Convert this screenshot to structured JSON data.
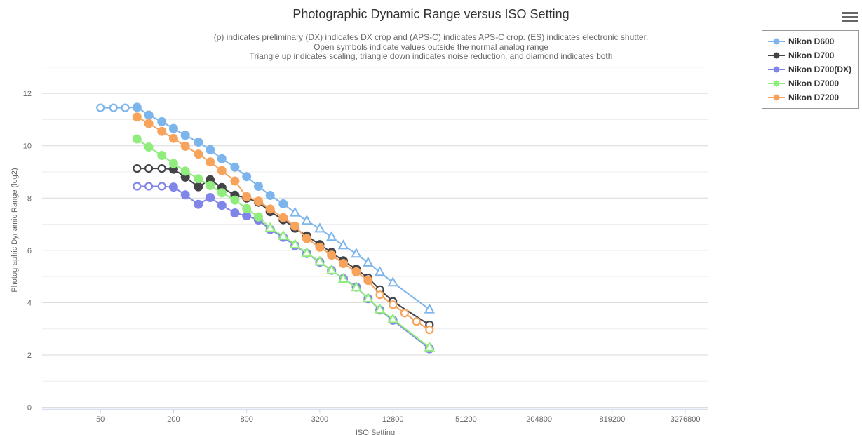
{
  "header": {
    "title": "Photographic Dynamic Range versus ISO Setting",
    "subtitle_lines": [
      "(p) indicates preliminary (DX) indicates DX crop and (APS-C) indicates APS-C crop. (ES) indicates electronic shutter.",
      "Open symbols indicate values outside the normal analog range",
      "Triangle up indicates scaling, triangle down indicates noise reduction, and diamond indicates both"
    ]
  },
  "toolbar": {
    "context_menu_icon": "hamburger-icon"
  },
  "chart_data": {
    "type": "line",
    "title": "Photographic Dynamic Range versus ISO Setting",
    "xlabel": "ISO Setting",
    "ylabel": "Photographic Dynamic Range (log2)",
    "grid": true,
    "legend_position": "top-right",
    "x_axis": {
      "scale": "log2",
      "range": [
        50,
        3276800
      ],
      "ticks": [
        {
          "iso": 50,
          "label": "50"
        },
        {
          "iso": 200,
          "label": "200"
        },
        {
          "iso": 800,
          "label": "800"
        },
        {
          "iso": 3200,
          "label": "3200"
        },
        {
          "iso": 12800,
          "label": "12800"
        },
        {
          "iso": 51200,
          "label": "51200"
        },
        {
          "iso": 204800,
          "label": "204800"
        },
        {
          "iso": 819200,
          "label": "819200"
        },
        {
          "iso": 3276800,
          "label": "3276800"
        }
      ]
    },
    "y_axis": {
      "range": [
        0,
        13
      ],
      "ticks": [
        {
          "v": 0,
          "label": "0"
        },
        {
          "v": 2,
          "label": "2"
        },
        {
          "v": 4,
          "label": "4"
        },
        {
          "v": 6,
          "label": "6"
        },
        {
          "v": 8,
          "label": "8"
        },
        {
          "v": 10,
          "label": "10"
        },
        {
          "v": 12,
          "label": "12"
        }
      ],
      "minor": [
        1,
        3,
        5,
        7,
        9,
        11,
        13
      ]
    },
    "colors": {
      "axis_line": "#ccd6eb",
      "major_grid": "#d8d8d8",
      "minor_grid": "#ededed",
      "tick_text": "#666666",
      "title_text": "#333333",
      "subtitle_text": "#666666"
    },
    "marker_key": {
      "c": "filled circle (normal analog range)",
      "o": "open circle (outside normal analog range)",
      "t": "open triangle-up (scaling applied)"
    },
    "series": [
      {
        "name": "Nikon D600",
        "color": "#7cb5ec",
        "points": [
          [
            50,
            11.45,
            "o"
          ],
          [
            64,
            11.45,
            "o"
          ],
          [
            80,
            11.45,
            "o"
          ],
          [
            100,
            11.47,
            "c"
          ],
          [
            125,
            11.17,
            "c"
          ],
          [
            160,
            10.92,
            "c"
          ],
          [
            200,
            10.66,
            "c"
          ],
          [
            250,
            10.4,
            "c"
          ],
          [
            320,
            10.14,
            "c"
          ],
          [
            400,
            9.85,
            "c"
          ],
          [
            500,
            9.5,
            "c"
          ],
          [
            640,
            9.18,
            "c"
          ],
          [
            800,
            8.82,
            "c"
          ],
          [
            1000,
            8.45,
            "c"
          ],
          [
            1250,
            8.1,
            "c"
          ],
          [
            1600,
            7.78,
            "c"
          ],
          [
            2000,
            7.44,
            "t"
          ],
          [
            2500,
            7.13,
            "t"
          ],
          [
            3200,
            6.83,
            "t"
          ],
          [
            4000,
            6.51,
            "t"
          ],
          [
            5000,
            6.19,
            "t"
          ],
          [
            6400,
            5.87,
            "t"
          ],
          [
            8000,
            5.53,
            "t"
          ],
          [
            10000,
            5.17,
            "t"
          ],
          [
            12800,
            4.77,
            "t"
          ],
          [
            25600,
            3.74,
            "t"
          ]
        ]
      },
      {
        "name": "Nikon D700",
        "color": "#434348",
        "points": [
          [
            100,
            9.13,
            "o"
          ],
          [
            125,
            9.13,
            "o"
          ],
          [
            160,
            9.13,
            "o"
          ],
          [
            200,
            9.1,
            "c"
          ],
          [
            250,
            8.8,
            "c"
          ],
          [
            320,
            8.43,
            "c"
          ],
          [
            400,
            8.7,
            "c"
          ],
          [
            500,
            8.4,
            "c"
          ],
          [
            640,
            8.11,
            "c"
          ],
          [
            800,
            8.0,
            "c"
          ],
          [
            1000,
            7.84,
            "c"
          ],
          [
            1250,
            7.48,
            "c"
          ],
          [
            1600,
            7.17,
            "c"
          ],
          [
            2000,
            6.85,
            "c"
          ],
          [
            2500,
            6.55,
            "c"
          ],
          [
            3200,
            6.22,
            "c"
          ],
          [
            4000,
            5.92,
            "c"
          ],
          [
            5000,
            5.6,
            "c"
          ],
          [
            6400,
            5.28,
            "c"
          ],
          [
            8000,
            4.95,
            "o"
          ],
          [
            10000,
            4.5,
            "o"
          ],
          [
            12800,
            4.05,
            "o"
          ],
          [
            25600,
            3.15,
            "o"
          ]
        ]
      },
      {
        "name": "Nikon D700(DX)",
        "color": "#8085e9",
        "points": [
          [
            100,
            8.45,
            "o"
          ],
          [
            125,
            8.45,
            "o"
          ],
          [
            160,
            8.45,
            "o"
          ],
          [
            200,
            8.42,
            "c"
          ],
          [
            250,
            8.12,
            "c"
          ],
          [
            320,
            7.76,
            "c"
          ],
          [
            400,
            8.02,
            "c"
          ],
          [
            500,
            7.72,
            "c"
          ],
          [
            640,
            7.43,
            "c"
          ],
          [
            800,
            7.32,
            "c"
          ],
          [
            1000,
            7.16,
            "c"
          ],
          [
            1250,
            6.8,
            "c"
          ],
          [
            1600,
            6.5,
            "c"
          ],
          [
            2000,
            6.18,
            "c"
          ],
          [
            2500,
            5.88,
            "c"
          ],
          [
            3200,
            5.55,
            "c"
          ],
          [
            4000,
            5.24,
            "c"
          ],
          [
            5000,
            4.92,
            "c"
          ],
          [
            6400,
            4.6,
            "c"
          ],
          [
            8000,
            4.15,
            "c"
          ],
          [
            10000,
            3.72,
            "c"
          ],
          [
            12800,
            3.33,
            "c"
          ],
          [
            25600,
            2.24,
            "c"
          ]
        ]
      },
      {
        "name": "Nikon D7000",
        "color": "#90ed7d",
        "points": [
          [
            100,
            10.26,
            "c"
          ],
          [
            125,
            9.95,
            "c"
          ],
          [
            160,
            9.63,
            "c"
          ],
          [
            200,
            9.32,
            "c"
          ],
          [
            250,
            9.03,
            "c"
          ],
          [
            320,
            8.74,
            "c"
          ],
          [
            400,
            8.48,
            "c"
          ],
          [
            500,
            8.2,
            "c"
          ],
          [
            640,
            7.92,
            "c"
          ],
          [
            800,
            7.6,
            "c"
          ],
          [
            1000,
            7.28,
            "c"
          ],
          [
            1250,
            6.85,
            "t"
          ],
          [
            1600,
            6.55,
            "t"
          ],
          [
            2000,
            6.22,
            "t"
          ],
          [
            2500,
            5.9,
            "t"
          ],
          [
            3200,
            5.57,
            "t"
          ],
          [
            4000,
            5.24,
            "t"
          ],
          [
            5000,
            4.91,
            "t"
          ],
          [
            6400,
            4.58,
            "t"
          ],
          [
            8000,
            4.16,
            "t"
          ],
          [
            10000,
            3.74,
            "t"
          ],
          [
            12800,
            3.37,
            "t"
          ],
          [
            25600,
            2.29,
            "t"
          ]
        ]
      },
      {
        "name": "Nikon D7200",
        "color": "#f7a35c",
        "points": [
          [
            100,
            11.1,
            "c"
          ],
          [
            125,
            10.85,
            "c"
          ],
          [
            160,
            10.55,
            "c"
          ],
          [
            200,
            10.28,
            "c"
          ],
          [
            250,
            9.98,
            "c"
          ],
          [
            320,
            9.68,
            "c"
          ],
          [
            400,
            9.38,
            "c"
          ],
          [
            500,
            9.05,
            "c"
          ],
          [
            640,
            8.65,
            "c"
          ],
          [
            800,
            8.05,
            "c"
          ],
          [
            1000,
            7.88,
            "c"
          ],
          [
            1250,
            7.58,
            "c"
          ],
          [
            1600,
            7.25,
            "c"
          ],
          [
            2000,
            6.93,
            "c"
          ],
          [
            2500,
            6.45,
            "c"
          ],
          [
            3200,
            6.12,
            "c"
          ],
          [
            4000,
            5.82,
            "c"
          ],
          [
            5000,
            5.5,
            "c"
          ],
          [
            6400,
            5.18,
            "c"
          ],
          [
            8000,
            4.85,
            "c"
          ],
          [
            10000,
            4.3,
            "o"
          ],
          [
            12800,
            3.92,
            "o"
          ],
          [
            16000,
            3.6,
            "o"
          ],
          [
            20000,
            3.28,
            "o"
          ],
          [
            25600,
            2.96,
            "o"
          ]
        ]
      }
    ]
  }
}
